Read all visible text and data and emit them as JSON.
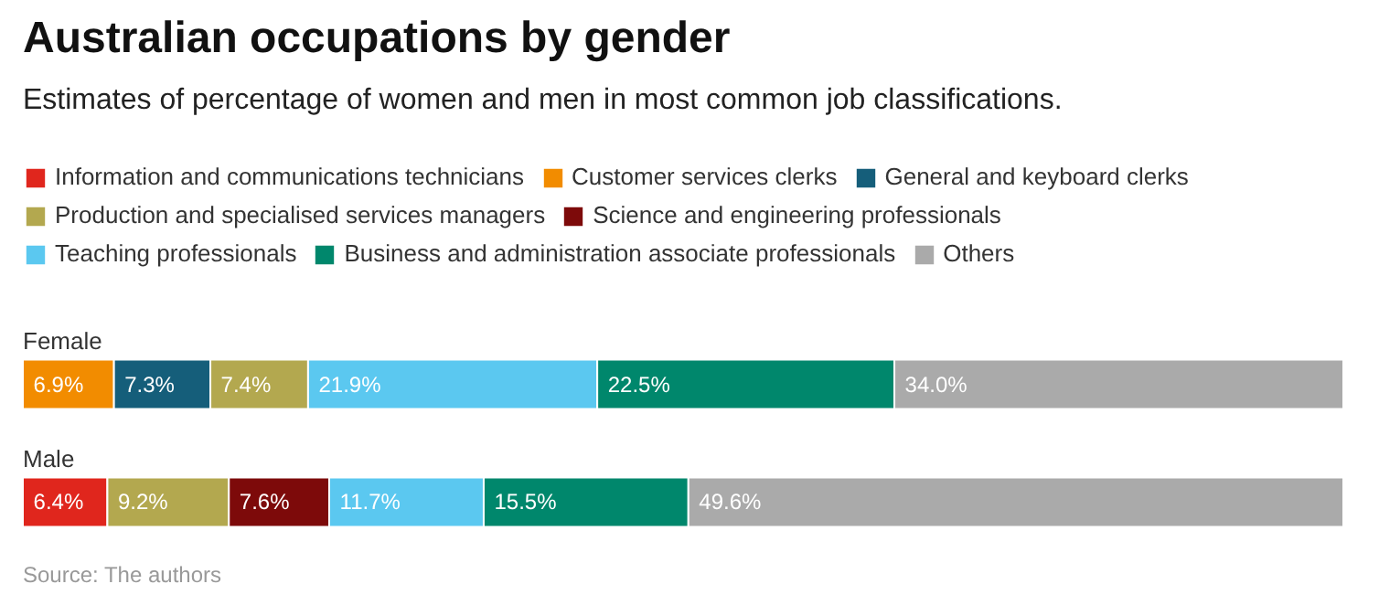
{
  "chart_data": {
    "type": "bar",
    "orientation": "horizontal",
    "stacked": true,
    "title": "Australian occupations by gender",
    "subtitle": "Estimates of percentage of women and men in most common job classifications.",
    "categories": [
      "Female",
      "Male"
    ],
    "xlim": [
      0,
      100
    ],
    "tick_labels": false,
    "legend": "top",
    "grid": false,
    "series": [
      {
        "name": "Information and communications technicians",
        "color": "#e0261d",
        "values": [
          null,
          6.4
        ],
        "value_labels": [
          null,
          "6.4%"
        ]
      },
      {
        "name": "Customer services clerks",
        "color": "#f28c00",
        "values": [
          6.9,
          null
        ],
        "value_labels": [
          "6.9%",
          null
        ]
      },
      {
        "name": "General and keyboard clerks",
        "color": "#155e7a",
        "values": [
          7.3,
          null
        ],
        "value_labels": [
          "7.3%",
          null
        ]
      },
      {
        "name": "Production and specialised services managers",
        "color": "#b3a84f",
        "values": [
          7.4,
          9.2
        ],
        "value_labels": [
          "7.4%",
          "9.2%"
        ]
      },
      {
        "name": "Science and engineering professionals",
        "color": "#7d0a0a",
        "values": [
          null,
          7.6
        ],
        "value_labels": [
          null,
          "7.6%"
        ]
      },
      {
        "name": "Teaching professionals",
        "color": "#5bc8f0",
        "values": [
          21.9,
          11.7
        ],
        "value_labels": [
          "21.9%",
          "11.7%"
        ]
      },
      {
        "name": "Business and administration associate professionals",
        "color": "#00876c",
        "values": [
          22.5,
          15.5
        ],
        "value_labels": [
          "22.5%",
          "15.5%"
        ]
      },
      {
        "name": "Others",
        "color": "#aaaaaa",
        "values": [
          34.0,
          49.6
        ],
        "value_labels": [
          "34.0%",
          "49.6%"
        ]
      }
    ],
    "annotations": [
      "Source: The authors"
    ]
  }
}
